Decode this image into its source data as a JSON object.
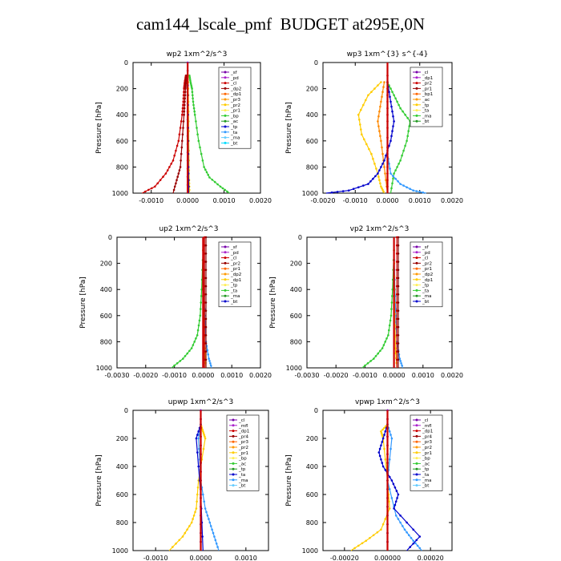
{
  "title": "cam144_lscale_pmf  BUDGET at295E,0N",
  "chart_data": [
    {
      "type": "line",
      "title": "wp2   1xm^2/s^3",
      "ylabel": "Pressure  [hPa]",
      "xlim": [
        -0.0015,
        0.002
      ],
      "ylim": [
        1000,
        0
      ],
      "xticks": [
        -0.001,
        0,
        0.001,
        0.002
      ],
      "xticklabels": [
        "-0.0010",
        "0.0000",
        "0.0010",
        "0.0020"
      ],
      "yticks": [
        0,
        200,
        400,
        600,
        800,
        1000
      ],
      "legend_position": "top-right",
      "legend": [
        "_sf",
        "_pd",
        "_cl",
        "_dp2",
        "_dp1",
        "_pr3",
        "_pr2",
        "_pr1",
        "_bp",
        "_ac",
        "_tp",
        "_ta",
        "_ma",
        "_bt"
      ],
      "series": [
        {
          "name": "_ac",
          "color": "#33cc33",
          "x": [
            5e-05,
            8e-05,
            0.00012,
            0.00015,
            0.0002,
            0.0003,
            0.00045,
            0.0006,
            0.0009,
            0.00115
          ],
          "y": [
            100,
            150,
            200,
            300,
            400,
            600,
            800,
            880,
            950,
            1000
          ]
        },
        {
          "name": "_dp2",
          "color": "#cc0000",
          "x": [
            -5e-05,
            -8e-05,
            -0.0001,
            -0.00012,
            -0.00015,
            -0.00025,
            -0.0004,
            -0.0006,
            -0.0009,
            -0.00125
          ],
          "y": [
            100,
            150,
            200,
            300,
            400,
            600,
            750,
            850,
            950,
            1000
          ]
        },
        {
          "name": "_dp1",
          "color": "#990000",
          "x": [
            -3e-05,
            -5e-05,
            -6e-05,
            -8e-05,
            -0.0001,
            -0.00015,
            -0.0002,
            -0.0003,
            -0.0004
          ],
          "y": [
            100,
            150,
            200,
            300,
            400,
            600,
            800,
            900,
            1000
          ]
        },
        {
          "name": "_pd",
          "color": "#7700aa",
          "x": [
            0,
            0,
            0,
            0,
            0
          ],
          "y": [
            0,
            250,
            500,
            750,
            1000
          ]
        },
        {
          "name": "_pr1",
          "color": "#ffcc00",
          "x": [
            1e-05,
            2e-05,
            3e-05,
            4e-05,
            5e-05
          ],
          "y": [
            100,
            300,
            600,
            900,
            1000
          ]
        },
        {
          "name": "_tp",
          "color": "#0000cc",
          "x": [
            0,
            1e-05,
            2e-05,
            3e-05
          ],
          "y": [
            100,
            400,
            800,
            1000
          ]
        }
      ]
    },
    {
      "type": "line",
      "title": "wp3   1xm^{3} s^{-4}",
      "ylabel": "Pressure  [hPa]",
      "xlim": [
        -0.002,
        0.002
      ],
      "ylim": [
        1000,
        0
      ],
      "xticks": [
        -0.002,
        -0.001,
        0,
        0.001,
        0.002
      ],
      "xticklabels": [
        "-0.0020",
        "-0.0010",
        "0.0000",
        "0.0010",
        "0.0020"
      ],
      "yticks": [
        0,
        200,
        400,
        600,
        800,
        1000
      ],
      "legend_position": "top-right",
      "legend": [
        "_cl",
        "_dp1",
        "_pr2",
        "_pr1",
        "_bp1",
        "_ac",
        "_tp",
        "_ta",
        "_ma",
        "_bt"
      ],
      "series": [
        {
          "name": "_ac",
          "color": "#33cc33",
          "x": [
            0,
            0.0002,
            0.0004,
            0.0007,
            0.0006,
            0.0004,
            0.0002,
            0.0001
          ],
          "y": [
            150,
            250,
            350,
            450,
            600,
            750,
            850,
            1000
          ]
        },
        {
          "name": "_pr1",
          "color": "#ffcc00",
          "x": [
            -0.0002,
            -0.0006,
            -0.0009,
            -0.0008,
            -0.0005,
            -0.0003,
            -0.0002,
            -0.0001
          ],
          "y": [
            150,
            250,
            400,
            550,
            700,
            850,
            950,
            1000
          ]
        },
        {
          "name": "_pr2",
          "color": "#ff8800",
          "x": [
            -0.0001,
            -0.0002,
            -0.0003,
            -0.0002,
            -0.0001,
            0
          ],
          "y": [
            150,
            300,
            450,
            600,
            800,
            1000
          ]
        },
        {
          "name": "_tp",
          "color": "#0000cc",
          "x": [
            0,
            0.0001,
            0.0002,
            0.0001,
            -0.0001,
            -0.0003,
            -0.0006,
            -0.0012,
            -0.0019
          ],
          "y": [
            150,
            300,
            450,
            600,
            750,
            850,
            930,
            980,
            1000
          ]
        },
        {
          "name": "_ta",
          "color": "#3399ff",
          "x": [
            0,
            0.0001,
            0.0004,
            0.0008,
            0.0012
          ],
          "y": [
            700,
            850,
            930,
            980,
            1000
          ]
        },
        {
          "name": "_dp1",
          "color": "#cc0000",
          "x": [
            0,
            0,
            0,
            0,
            0
          ],
          "y": [
            100,
            300,
            500,
            800,
            1000
          ]
        }
      ]
    },
    {
      "type": "line",
      "title": "up2   1xm^2/s^3",
      "ylabel": "Pressure  [hPa]",
      "xlim": [
        -0.003,
        0.002
      ],
      "ylim": [
        1000,
        0
      ],
      "xticks": [
        -0.003,
        -0.002,
        -0.001,
        0,
        0.001,
        0.002
      ],
      "xticklabels": [
        "-0.0030",
        "-0.0020",
        "-0.0010",
        "0.0000",
        "0.0010",
        "0.0020"
      ],
      "yticks": [
        0,
        200,
        400,
        600,
        800,
        1000
      ],
      "legend_position": "top-right",
      "legend": [
        "_sf",
        "_pd",
        "_cl",
        "_pr2",
        "_pr1",
        "_dp2",
        "_dp1",
        "_tp",
        "_ta",
        "_ma",
        "_bt"
      ],
      "series": [
        {
          "name": "_dp1",
          "color": "#33cc33",
          "x": [
            0,
            -5e-05,
            -0.0001,
            -0.0002,
            -0.0004,
            -0.0007,
            -0.0011
          ],
          "y": [
            100,
            400,
            600,
            750,
            850,
            930,
            1000
          ]
        },
        {
          "name": "_tp",
          "color": "#3399ff",
          "x": [
            0,
            3e-05,
            6e-05,
            0.0001,
            0.0002,
            0.0003
          ],
          "y": [
            100,
            400,
            600,
            800,
            930,
            1000
          ]
        },
        {
          "name": "_pr1",
          "color": "#ffcc00",
          "x": [
            0,
            2e-05,
            5e-05,
            0.0001
          ],
          "y": [
            100,
            500,
            850,
            1000
          ]
        },
        {
          "name": "_cl",
          "color": "#cc0000",
          "x": [
            5e-05,
            5e-05,
            5e-05,
            5e-05,
            5e-05
          ],
          "y": [
            0,
            250,
            500,
            750,
            1000
          ]
        },
        {
          "name": "_pd",
          "color": "#880000",
          "x": [
            0.0001,
            0.0001,
            0.0001,
            0.0001,
            0.0001
          ],
          "y": [
            0,
            250,
            500,
            750,
            1000
          ]
        }
      ]
    },
    {
      "type": "line",
      "title": "vp2   1xm^2/s^3",
      "ylabel": "Pressure  [hPa]",
      "xlim": [
        -0.003,
        0.002
      ],
      "ylim": [
        1000,
        0
      ],
      "xticks": [
        -0.003,
        -0.002,
        -0.001,
        0,
        0.001,
        0.002
      ],
      "xticklabels": [
        "-0.0030",
        "-0.0020",
        "-0.0010",
        "0.0000",
        "0.0010",
        "0.0020"
      ],
      "yticks": [
        0,
        200,
        400,
        600,
        800,
        1000
      ],
      "legend_position": "top-right",
      "legend": [
        "_sf",
        "_pd",
        "_cl",
        "_pr2",
        "_pr1",
        "_dp2",
        "_dp1",
        "_tp",
        "_ta",
        "_ma",
        "_bt"
      ],
      "series": [
        {
          "name": "_dp1",
          "color": "#33cc33",
          "x": [
            0,
            -5e-05,
            -0.0001,
            -0.0002,
            -0.0004,
            -0.0007,
            -0.0011
          ],
          "y": [
            100,
            400,
            600,
            750,
            850,
            930,
            1000
          ]
        },
        {
          "name": "_tp",
          "color": "#3399ff",
          "x": [
            0,
            3e-05,
            6e-05,
            0.0001,
            0.0002,
            0.0003
          ],
          "y": [
            100,
            400,
            600,
            800,
            930,
            1000
          ]
        },
        {
          "name": "_pr1",
          "color": "#ffcc00",
          "x": [
            0,
            2e-05,
            5e-05,
            0.0001
          ],
          "y": [
            100,
            500,
            850,
            1000
          ]
        },
        {
          "name": "_cl",
          "color": "#cc0000",
          "x": [
            0.0001,
            0.0001,
            0.0001,
            0.0001,
            0.0001
          ],
          "y": [
            0,
            250,
            500,
            750,
            1000
          ]
        },
        {
          "name": "_pd",
          "color": "#880000",
          "x": [
            0.00015,
            0.00015,
            0.00015,
            0.00015,
            0.00015
          ],
          "y": [
            0,
            250,
            500,
            750,
            1000
          ]
        }
      ]
    },
    {
      "type": "line",
      "title": "upwp   1xm^2/s^3",
      "ylabel": "Pressure  [hPa]",
      "xlim": [
        -0.0015,
        0.0015
      ],
      "ylim": [
        1000,
        0
      ],
      "xticks": [
        -0.001,
        0,
        0.001
      ],
      "xticklabels": [
        "-0.0010",
        "0.0000",
        "0.0010"
      ],
      "yticks": [
        0,
        200,
        400,
        600,
        800,
        1000
      ],
      "legend_position": "top-right",
      "legend": [
        "_cl",
        "_mfl",
        "_dp1",
        "_pr4",
        "_pr3",
        "_pr2",
        "_pr1",
        "_bp",
        "_ac",
        "_tp",
        "_ta",
        "_ma",
        "_bt"
      ],
      "series": [
        {
          "name": "_pr1",
          "color": "#ffcc00",
          "x": [
            0,
            5e-05,
            0.0001,
            -5e-05,
            -0.0001,
            -0.0002,
            -0.0004,
            -0.0007
          ],
          "y": [
            100,
            150,
            200,
            500,
            700,
            800,
            900,
            1000
          ]
        },
        {
          "name": "_ta",
          "color": "#3399ff",
          "x": [
            0,
            -5e-05,
            0,
            0.0001,
            0.0002,
            0.0003,
            0.0004
          ],
          "y": [
            100,
            200,
            500,
            700,
            800,
            900,
            1000
          ]
        },
        {
          "name": "_tp",
          "color": "#0000cc",
          "x": [
            0,
            -0.0001,
            0,
            5e-05
          ],
          "y": [
            100,
            200,
            600,
            1000
          ]
        },
        {
          "name": "_mfl",
          "color": "#882222",
          "x": [
            0,
            0,
            0,
            0,
            0
          ],
          "y": [
            0,
            250,
            500,
            750,
            1000
          ]
        },
        {
          "name": "_cl",
          "color": "#7700aa",
          "x": [
            0,
            0,
            0,
            0,
            0
          ],
          "y": [
            0,
            250,
            500,
            750,
            1000
          ]
        }
      ]
    },
    {
      "type": "line",
      "title": "vpwp   1xm^2/s^3",
      "ylabel": "Pressure  [hPa]",
      "xlim": [
        -0.0003,
        0.0003
      ],
      "ylim": [
        1000,
        0
      ],
      "xticks": [
        -0.0002,
        0,
        0.0002
      ],
      "xticklabels": [
        "-0.00020",
        "0.00000",
        "0.00020"
      ],
      "yticks": [
        0,
        200,
        400,
        600,
        800,
        1000
      ],
      "legend_position": "top-right",
      "legend": [
        "_cl",
        "_mfl",
        "_dp1",
        "_pr4",
        "_pr3",
        "_pr2",
        "_pr1",
        "_bp",
        "_ac",
        "_tp",
        "_ta",
        "_ma",
        "_bt"
      ],
      "series": [
        {
          "name": "_pr1",
          "color": "#ffcc00",
          "x": [
            0,
            -3e-05,
            -2e-05,
            0,
            1e-05,
            -3e-05,
            -0.0001,
            -0.00017
          ],
          "y": [
            100,
            150,
            200,
            500,
            700,
            850,
            930,
            1000
          ]
        },
        {
          "name": "_ta",
          "color": "#3399ff",
          "x": [
            0,
            2e-05,
            0,
            4e-05,
            8e-05,
            0.00012,
            0.00016
          ],
          "y": [
            100,
            200,
            500,
            750,
            850,
            930,
            1000
          ]
        },
        {
          "name": "_tp",
          "color": "#0000cc",
          "x": [
            0,
            -2e-05,
            -4e-05,
            -2e-05,
            2e-05,
            5e-05,
            3e-05,
            0.00015,
            9e-05
          ],
          "y": [
            100,
            200,
            300,
            400,
            500,
            600,
            700,
            900,
            1000
          ]
        },
        {
          "name": "_mfl",
          "color": "#882222",
          "x": [
            0,
            0,
            0,
            0,
            0
          ],
          "y": [
            0,
            250,
            500,
            750,
            1000
          ]
        },
        {
          "name": "_cl",
          "color": "#7700aa",
          "x": [
            0,
            0,
            0,
            0,
            0
          ],
          "y": [
            0,
            250,
            500,
            750,
            1000
          ]
        }
      ]
    }
  ]
}
